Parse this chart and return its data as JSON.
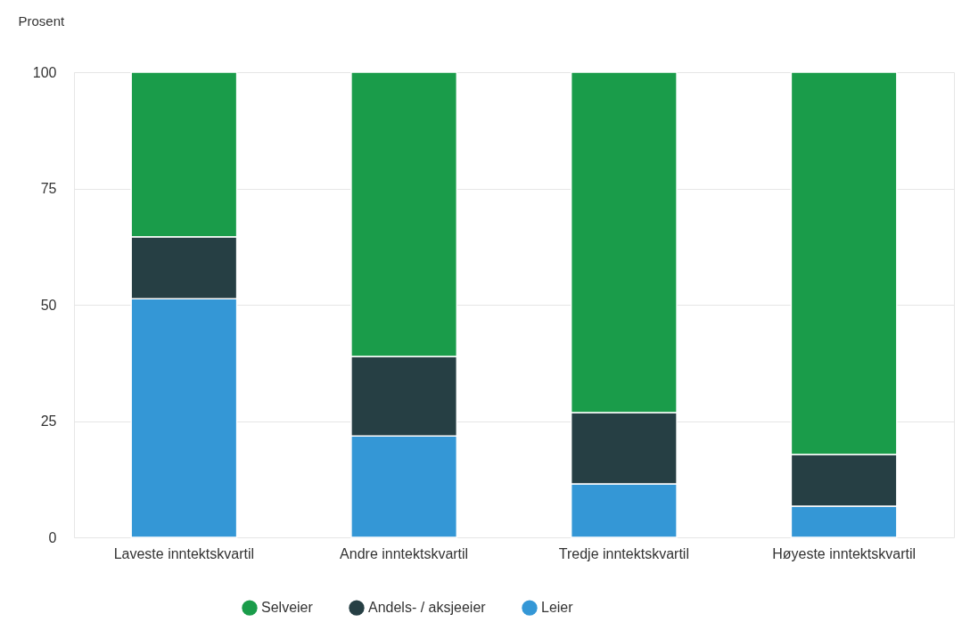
{
  "chart_data": {
    "type": "bar",
    "stacked": true,
    "ylabel": "Prosent",
    "categories": [
      "Laveste inntektskvartil",
      "Andre inntektskvartil",
      "Tredje inntektskvartil",
      "Høyeste inntektskvartil"
    ],
    "series": [
      {
        "name": "Leier",
        "color": "#3497d6",
        "values": [
          51.3,
          21.8,
          11.5,
          6.7
        ]
      },
      {
        "name": "Andels- / aksjeeier",
        "color": "#263f44",
        "values": [
          13.3,
          17.1,
          15.3,
          11.1
        ]
      },
      {
        "name": "Selveier",
        "color": "#1a9c4a",
        "values": [
          35.4,
          61.1,
          73.2,
          82.2
        ]
      }
    ],
    "ylim": [
      0,
      100
    ],
    "yticks": [
      0,
      25,
      50,
      75,
      100
    ],
    "grid": true,
    "legend": "bottom"
  }
}
